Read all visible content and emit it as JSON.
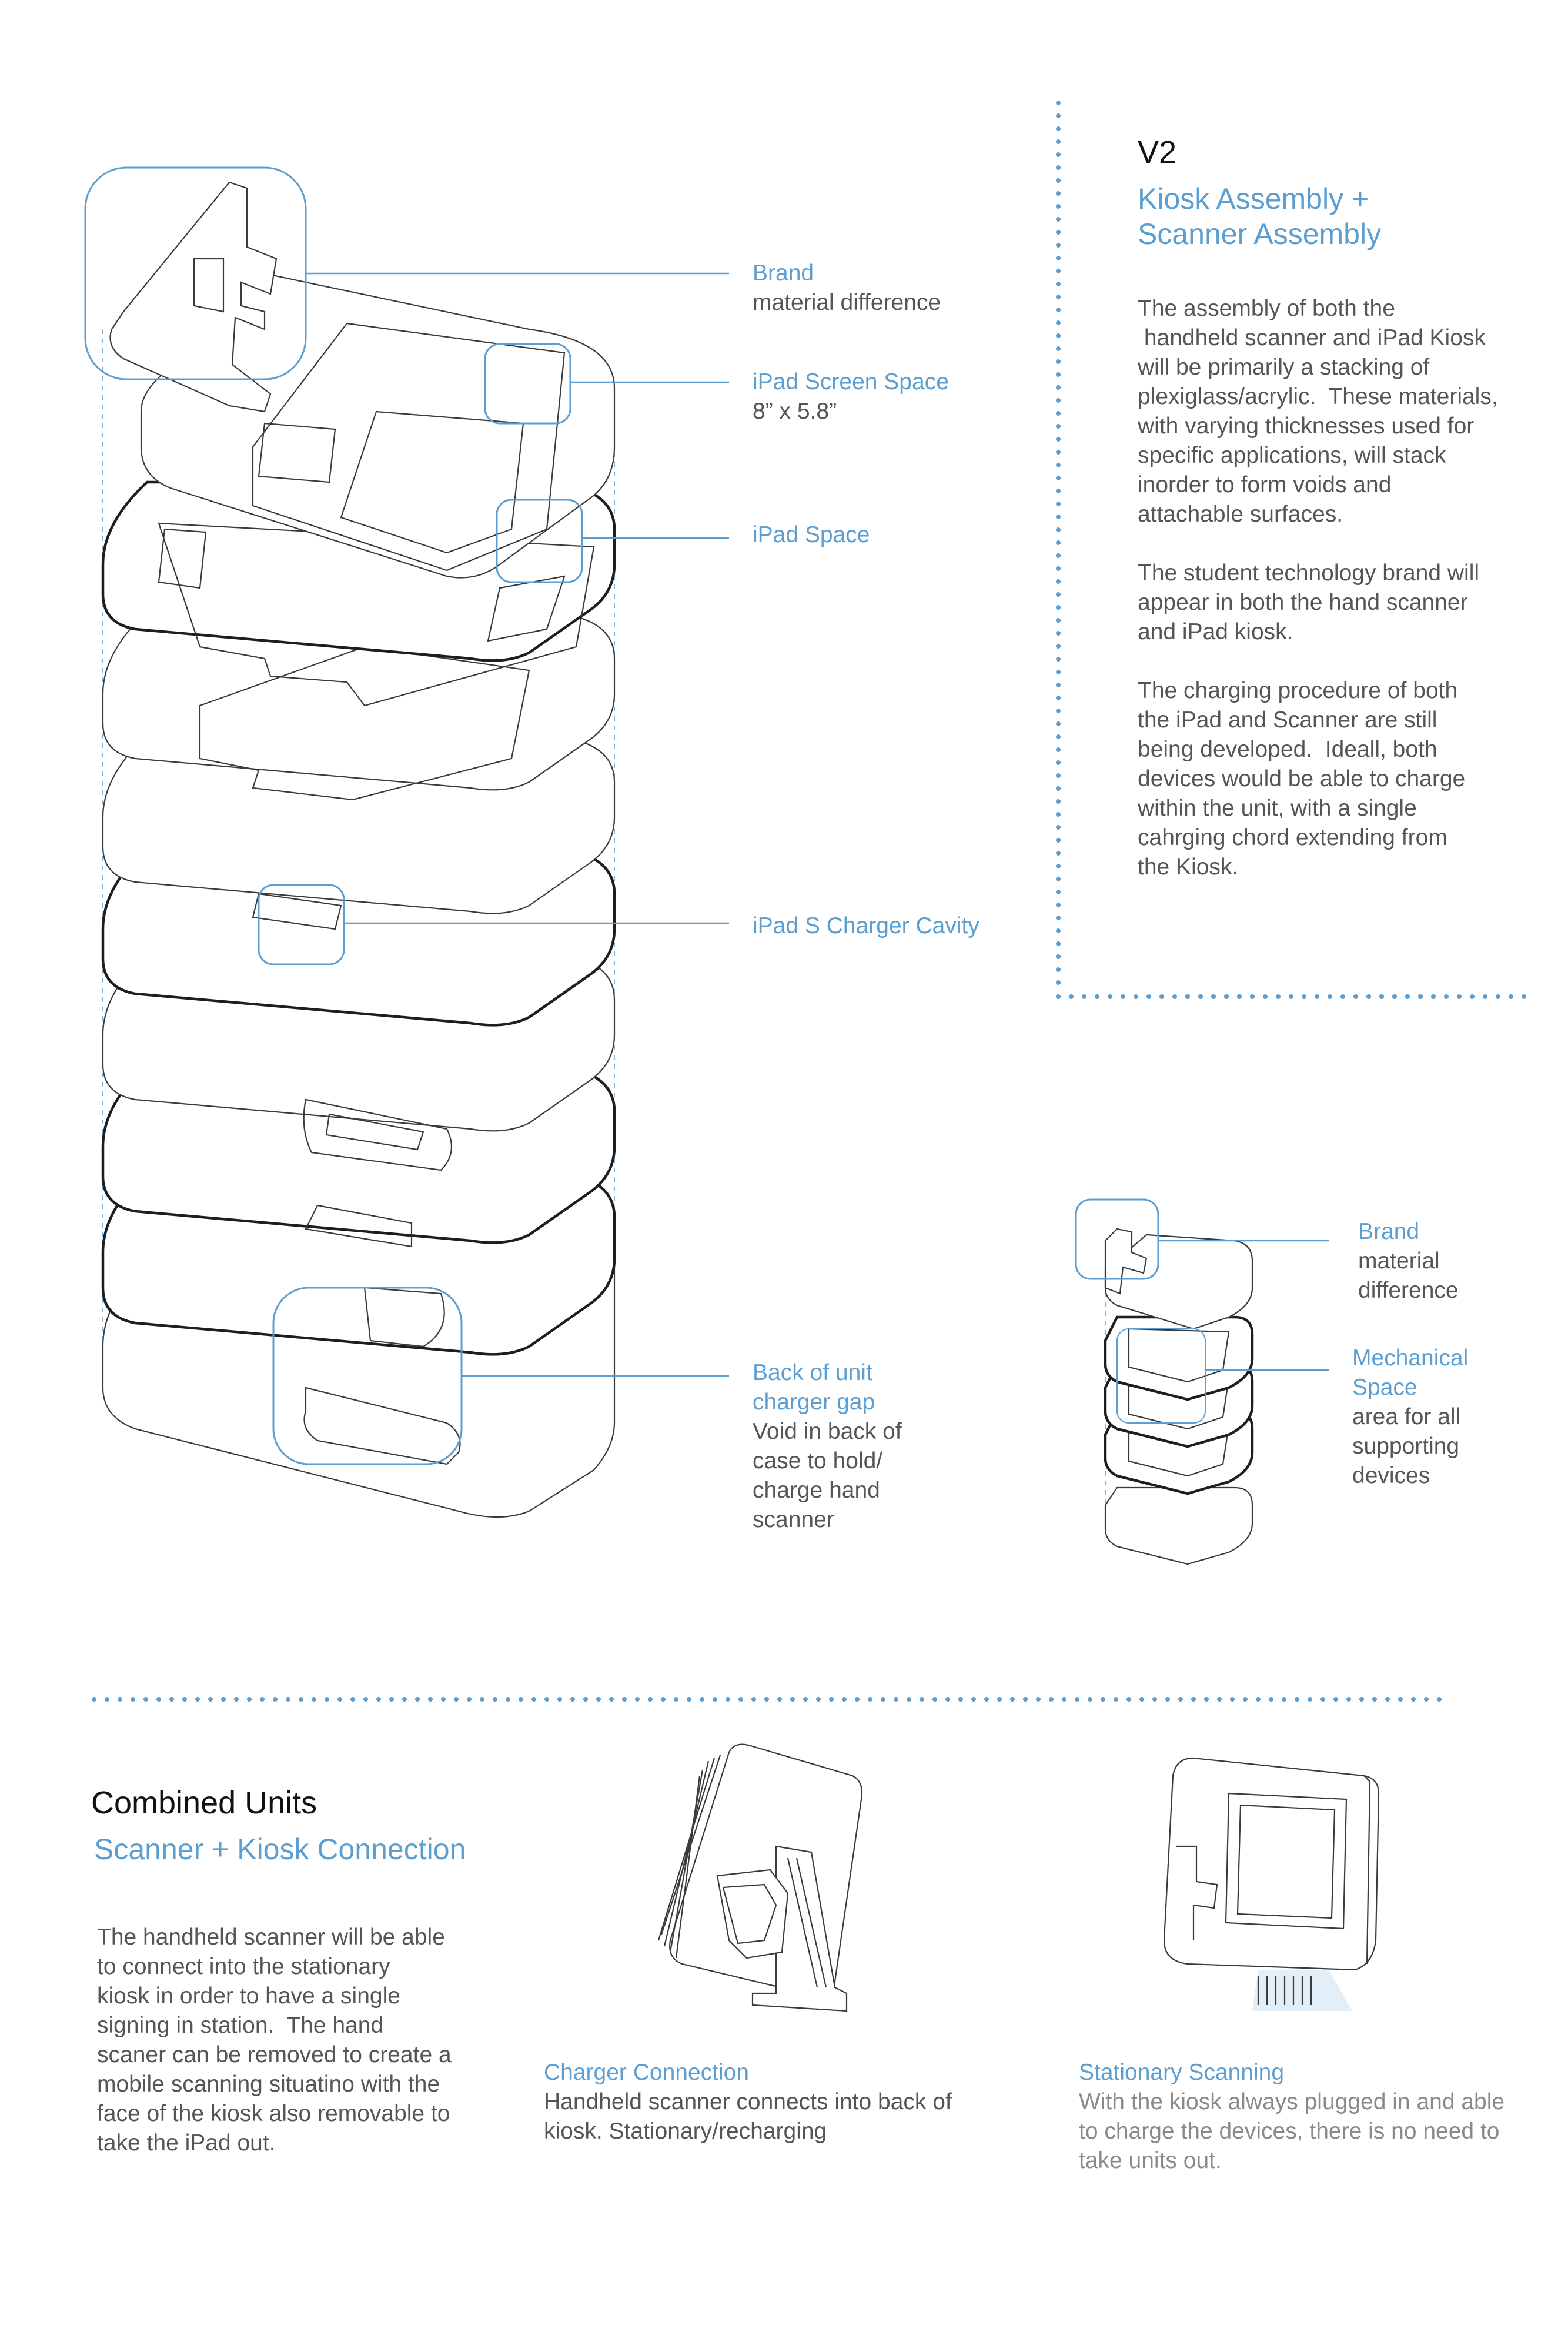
{
  "version": {
    "title": "V2",
    "subtitle_line1": "Kiosk Assembly +",
    "subtitle_line2": "Scanner Assembly",
    "paragraphs": [
      "The assembly of both the\n handheld scanner and iPad Kiosk\nwill be primarily a stacking of\nplexiglass/acrylic.  These materials,\nwith varying thicknesses used for\nspecific applications, will stack\ninorder to form voids and\nattachable surfaces.",
      "The student technology brand will\nappear in both the hand scanner\nand iPad kiosk.",
      "The charging procedure of both\nthe iPad and Scanner are still\nbeing developed.  Ideall, both\ndevices would be able to charge\nwithin the unit, with a single\ncahrging chord extending from\nthe Kiosk."
    ]
  },
  "kiosk_callouts": {
    "brand_title": "Brand",
    "brand_desc": "material difference",
    "screen_title": "iPad Screen Space",
    "screen_desc": "8” x 5.8”",
    "ipad_space": "iPad Space",
    "charger_cavity": "iPad S Charger Cavity",
    "back_title_line1": "Back of unit",
    "back_title_line2": "charger gap",
    "back_desc": "Void in back of\ncase to hold/\ncharge hand\nscanner"
  },
  "scanner_callouts": {
    "brand_title": "Brand",
    "brand_desc": "material\ndifference",
    "mech_title_line1": "Mechanical",
    "mech_title_line2": "Space",
    "mech_desc": "area for all\nsupporting\ndevices"
  },
  "combined": {
    "title": "Combined Units",
    "subtitle": "Scanner + Kiosk Connection",
    "paragraph": "The handheld scanner will be able\nto connect into the stationary\nkiosk in order to have a single\nsigning in station.  The hand\nscaner can be removed to create a\nmobile scanning situatino with the\nface of the kiosk also removable to\ntake the iPad out.",
    "charger_title": "Charger Connection",
    "charger_desc": "Handheld scanner connects into back of\nkiosk. Stationary/recharging",
    "stationary_title": "Stationary Scanning",
    "stationary_desc": "With the kiosk always plugged in and able\nto charge the devices, there is no need to\ntake units out."
  },
  "colors": {
    "accent": "#5c9ecf",
    "text": "#555555",
    "heading": "#111111"
  }
}
